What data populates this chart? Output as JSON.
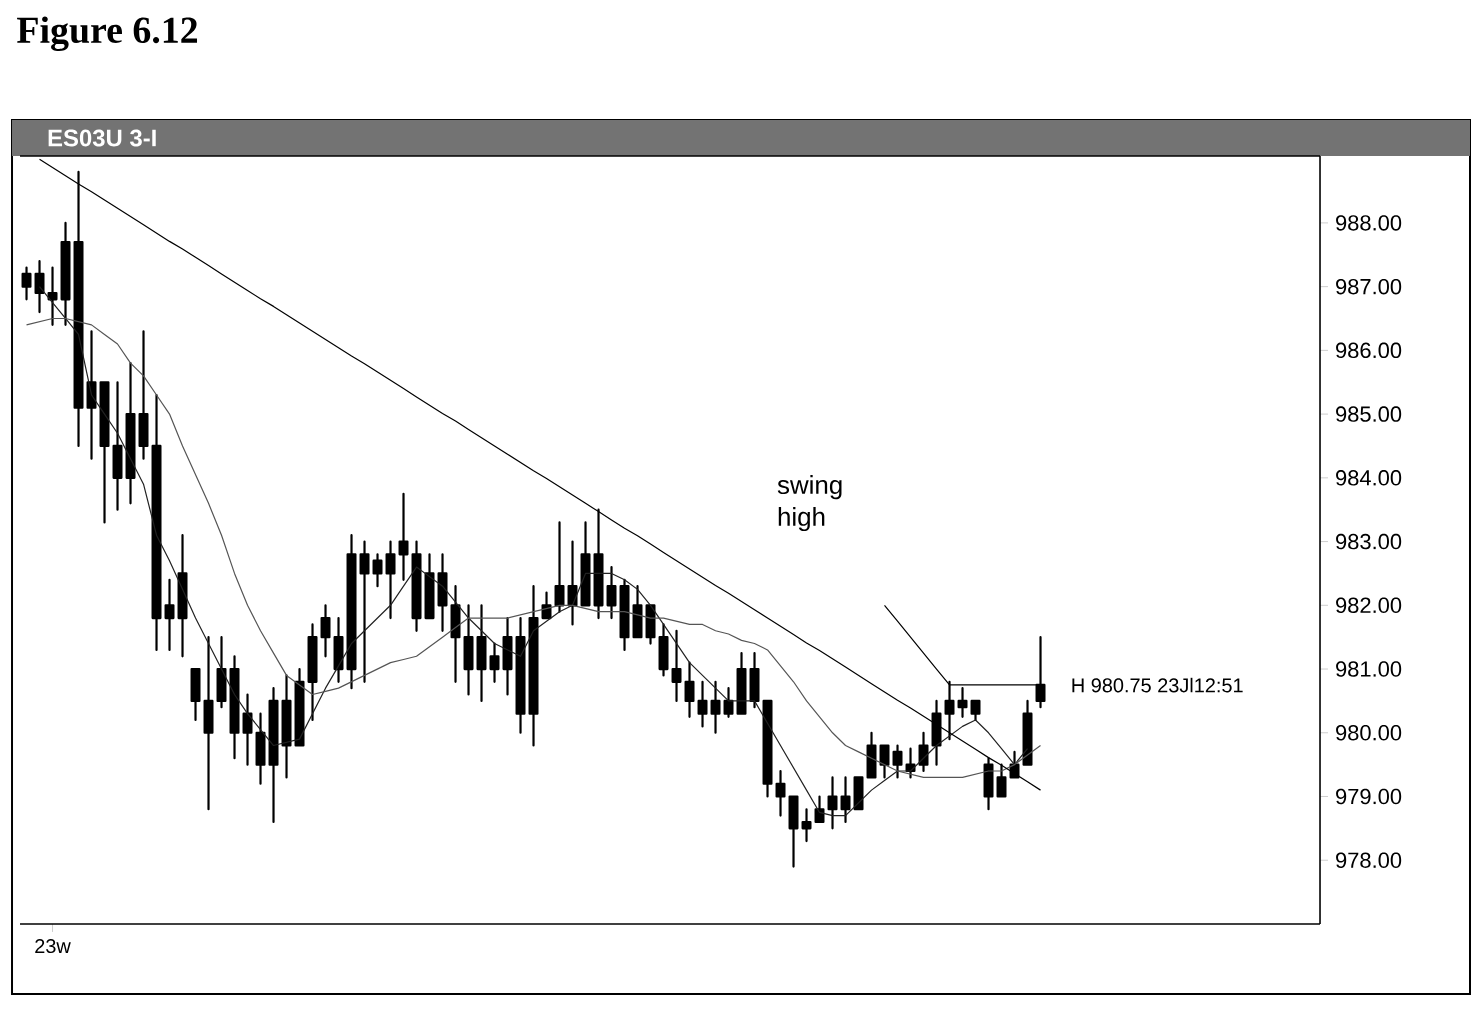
{
  "chart_data": {
    "type": "candlestick",
    "title": "Figure 6.12",
    "subtitle": "ES03U 3-I",
    "categories": [
      null,
      null,
      "23w",
      null,
      null,
      null,
      null,
      null,
      null,
      null,
      null,
      null,
      null,
      null,
      null,
      null,
      null,
      null,
      null,
      null,
      null,
      null,
      null,
      null,
      null,
      null,
      null,
      null,
      null,
      null,
      null,
      null,
      null,
      null,
      null,
      null,
      null,
      null,
      null,
      null,
      null,
      null,
      null,
      null,
      null,
      null,
      null,
      null,
      null,
      null,
      null,
      null,
      null,
      null,
      null,
      null,
      null,
      null,
      null,
      null,
      null,
      null,
      null,
      null,
      null,
      null,
      null,
      null,
      null,
      null,
      null,
      null,
      null,
      null,
      null,
      null,
      null,
      null,
      null
    ],
    "ohlc": [
      [
        987.0,
        987.3,
        986.8,
        987.2
      ],
      [
        987.2,
        987.4,
        986.6,
        986.9
      ],
      [
        986.9,
        987.3,
        986.4,
        986.8
      ],
      [
        986.8,
        988.0,
        986.4,
        987.7
      ],
      [
        987.7,
        988.8,
        984.5,
        985.1
      ],
      [
        985.1,
        986.3,
        984.3,
        985.5
      ],
      [
        985.5,
        985.5,
        983.3,
        984.5
      ],
      [
        984.5,
        985.5,
        983.5,
        984.0
      ],
      [
        984.0,
        985.8,
        983.6,
        985.0
      ],
      [
        985.0,
        986.3,
        984.3,
        984.5
      ],
      [
        984.5,
        985.3,
        981.3,
        981.8
      ],
      [
        981.8,
        982.4,
        981.3,
        982.0
      ],
      [
        981.8,
        983.1,
        981.2,
        982.5
      ],
      [
        981.0,
        981.0,
        980.2,
        980.5
      ],
      [
        980.5,
        981.5,
        978.8,
        980.0
      ],
      [
        980.5,
        981.5,
        980.4,
        981.0
      ],
      [
        981.0,
        981.2,
        979.6,
        980.0
      ],
      [
        980.0,
        980.6,
        979.5,
        980.3
      ],
      [
        980.0,
        980.3,
        979.2,
        979.5
      ],
      [
        979.5,
        980.7,
        978.6,
        980.5
      ],
      [
        980.5,
        980.9,
        979.3,
        979.8
      ],
      [
        979.8,
        981.0,
        979.8,
        980.8
      ],
      [
        980.8,
        981.7,
        980.2,
        981.5
      ],
      [
        981.5,
        982.0,
        981.2,
        981.8
      ],
      [
        981.5,
        981.8,
        980.8,
        981.0
      ],
      [
        981.0,
        983.1,
        980.7,
        982.8
      ],
      [
        982.8,
        983.0,
        980.8,
        982.5
      ],
      [
        982.5,
        982.8,
        982.3,
        982.7
      ],
      [
        982.5,
        983.0,
        981.8,
        982.8
      ],
      [
        982.8,
        983.75,
        982.4,
        983.0
      ],
      [
        982.8,
        983.0,
        981.6,
        981.8
      ],
      [
        981.8,
        982.8,
        981.8,
        982.5
      ],
      [
        982.5,
        982.8,
        981.6,
        982.0
      ],
      [
        982.0,
        982.3,
        980.8,
        981.5
      ],
      [
        981.5,
        982.0,
        980.6,
        981.0
      ],
      [
        981.0,
        982.0,
        980.5,
        981.5
      ],
      [
        981.2,
        981.4,
        980.8,
        981.0
      ],
      [
        981.0,
        981.8,
        980.6,
        981.5
      ],
      [
        981.5,
        981.8,
        980.0,
        980.3
      ],
      [
        980.3,
        982.3,
        979.8,
        981.8
      ],
      [
        981.8,
        982.2,
        981.8,
        982.0
      ],
      [
        982.0,
        983.3,
        981.9,
        982.3
      ],
      [
        982.3,
        983.0,
        981.7,
        982.0
      ],
      [
        982.0,
        983.3,
        982.0,
        982.8
      ],
      [
        982.8,
        983.5,
        981.8,
        982.0
      ],
      [
        982.0,
        982.6,
        981.8,
        982.3
      ],
      [
        982.3,
        982.4,
        981.3,
        981.5
      ],
      [
        981.5,
        982.3,
        981.5,
        982.0
      ],
      [
        982.0,
        982.0,
        981.4,
        981.5
      ],
      [
        981.5,
        981.7,
        980.9,
        981.0
      ],
      [
        981.0,
        981.6,
        980.5,
        980.8
      ],
      [
        980.8,
        981.1,
        980.25,
        980.5
      ],
      [
        980.5,
        980.8,
        980.1,
        980.3
      ],
      [
        980.3,
        980.8,
        980.0,
        980.5
      ],
      [
        980.5,
        980.7,
        980.25,
        980.3
      ],
      [
        980.3,
        981.25,
        980.3,
        981.0
      ],
      [
        981.0,
        981.25,
        980.4,
        980.5
      ],
      [
        980.5,
        980.5,
        979.0,
        979.2
      ],
      [
        979.2,
        979.4,
        978.7,
        979.0
      ],
      [
        979.0,
        979.0,
        977.9,
        978.5
      ],
      [
        978.5,
        978.8,
        978.3,
        978.6
      ],
      [
        978.6,
        979.0,
        978.6,
        978.8
      ],
      [
        978.8,
        979.3,
        978.5,
        979.0
      ],
      [
        979.0,
        979.3,
        978.6,
        978.8
      ],
      [
        978.8,
        979.3,
        978.8,
        979.3
      ],
      [
        979.3,
        980.0,
        979.3,
        979.8
      ],
      [
        979.8,
        979.8,
        979.3,
        979.5
      ],
      [
        979.5,
        979.8,
        979.3,
        979.7
      ],
      [
        979.5,
        979.75,
        979.3,
        979.4
      ],
      [
        979.5,
        980.0,
        979.4,
        979.8
      ],
      [
        979.8,
        980.5,
        979.5,
        980.3
      ],
      [
        980.3,
        980.8,
        979.9,
        980.5
      ],
      [
        980.5,
        980.7,
        980.25,
        980.4
      ],
      [
        980.5,
        980.5,
        980.2,
        980.3
      ],
      [
        979.5,
        979.6,
        978.8,
        979.0
      ],
      [
        979.0,
        979.5,
        979.0,
        979.3
      ],
      [
        979.3,
        979.7,
        979.3,
        979.5
      ],
      [
        979.5,
        980.5,
        979.5,
        980.3
      ],
      [
        980.5,
        981.5,
        980.4,
        980.75
      ]
    ],
    "series": [
      {
        "type": "line",
        "color": "#222222",
        "values": [
          null,
          987.0,
          986.75,
          986.5,
          986.25,
          985.3,
          985.0,
          984.7,
          984.3,
          983.9,
          983.1,
          982.7,
          982.25,
          981.8,
          981.4,
          981.0,
          980.6,
          980.3,
          980.05,
          979.8,
          979.85,
          979.9,
          980.3,
          980.7,
          981.05,
          981.4,
          981.6,
          981.8,
          982.0,
          982.3,
          982.6,
          982.45,
          982.3,
          982.05,
          981.8,
          981.6,
          981.4,
          981.3,
          981.2,
          981.6,
          981.75,
          981.9,
          982.0,
          982.5,
          982.5,
          982.5,
          982.4,
          982.25,
          982.0,
          981.7,
          981.4,
          981.1,
          980.9,
          980.7,
          980.5,
          980.5,
          980.5,
          980.15,
          979.8,
          979.45,
          979.1,
          978.75,
          978.7,
          978.7,
          978.9,
          979.1,
          979.25,
          979.4,
          979.4,
          979.6,
          979.8,
          979.95,
          980.1,
          980.2,
          980.0,
          979.75,
          979.5,
          979.75,
          null
        ]
      },
      {
        "type": "line",
        "color": "#555555",
        "values": [
          986.4,
          986.45,
          986.5,
          986.5,
          986.45,
          986.4,
          986.25,
          986.1,
          985.8,
          985.6,
          985.3,
          985.0,
          984.5,
          984.05,
          983.6,
          983.1,
          982.5,
          982.0,
          981.6,
          981.25,
          980.9,
          980.75,
          980.6,
          980.65,
          980.7,
          980.8,
          980.9,
          981.0,
          981.1,
          981.15,
          981.2,
          981.35,
          981.5,
          981.65,
          981.8,
          981.8,
          981.8,
          981.8,
          981.85,
          981.9,
          981.95,
          982.0,
          982.0,
          981.95,
          981.9,
          981.9,
          981.9,
          981.85,
          981.8,
          981.8,
          981.75,
          981.7,
          981.7,
          981.6,
          981.55,
          981.45,
          981.4,
          981.3,
          981.05,
          980.8,
          980.5,
          980.25,
          980.0,
          979.8,
          979.7,
          979.6,
          979.5,
          979.4,
          979.35,
          979.3,
          979.3,
          979.3,
          979.3,
          979.35,
          979.4,
          979.4,
          979.5,
          979.65,
          979.8
        ]
      },
      {
        "type": "line",
        "color": "#000000",
        "values": [
          null,
          989.0,
          988.87,
          988.74,
          988.61,
          988.49,
          988.36,
          988.23,
          988.1,
          987.97,
          987.84,
          987.71,
          987.59,
          987.46,
          987.33,
          987.2,
          987.07,
          986.94,
          986.81,
          986.69,
          986.56,
          986.43,
          986.3,
          986.17,
          986.04,
          985.91,
          985.79,
          985.66,
          985.53,
          985.4,
          985.27,
          985.14,
          985.01,
          984.89,
          984.76,
          984.63,
          984.5,
          984.37,
          984.24,
          984.11,
          983.99,
          983.86,
          983.73,
          983.6,
          983.47,
          983.34,
          983.21,
          983.09,
          982.96,
          982.83,
          982.7,
          982.57,
          982.44,
          982.31,
          982.19,
          982.06,
          981.93,
          981.8,
          981.67,
          981.54,
          981.41,
          981.29,
          981.16,
          981.03,
          980.9,
          980.77,
          980.64,
          980.51,
          980.39,
          980.26,
          980.13,
          980.0,
          979.87,
          979.74,
          979.61,
          979.49,
          979.36,
          979.23,
          979.1
        ]
      },
      {
        "type": "line",
        "color": "#000000",
        "values": [
          null,
          null,
          null,
          null,
          null,
          null,
          null,
          null,
          null,
          null,
          null,
          null,
          null,
          null,
          null,
          null,
          null,
          null,
          null,
          null,
          null,
          null,
          null,
          null,
          null,
          null,
          null,
          null,
          null,
          null,
          null,
          null,
          null,
          null,
          null,
          null,
          null,
          null,
          null,
          null,
          null,
          null,
          null,
          null,
          null,
          null,
          null,
          null,
          null,
          null,
          null,
          null,
          null,
          null,
          null,
          null,
          null,
          null,
          null,
          null,
          null,
          null,
          null,
          null,
          null,
          null,
          982.0,
          981.75,
          981.5,
          981.25,
          981.0,
          980.75,
          null,
          null,
          null,
          null,
          null,
          null,
          null
        ]
      },
      {
        "type": "line",
        "color": "#000000",
        "values": [
          null,
          null,
          null,
          null,
          null,
          null,
          null,
          null,
          null,
          null,
          null,
          null,
          null,
          null,
          null,
          null,
          null,
          null,
          null,
          null,
          null,
          null,
          null,
          null,
          null,
          null,
          null,
          null,
          null,
          null,
          null,
          null,
          null,
          null,
          null,
          null,
          null,
          null,
          null,
          null,
          null,
          null,
          null,
          null,
          null,
          null,
          null,
          null,
          null,
          null,
          null,
          null,
          null,
          null,
          null,
          null,
          null,
          null,
          null,
          null,
          null,
          null,
          null,
          null,
          null,
          null,
          null,
          null,
          null,
          null,
          null,
          980.75,
          980.75,
          980.75,
          980.75,
          980.75,
          980.75,
          980.75,
          980.75
        ]
      }
    ],
    "ylim": [
      977.0,
      989.05
    ],
    "yticks": [
      {
        "value": 978,
        "label": "978.00"
      },
      {
        "value": 979,
        "label": "979.00"
      },
      {
        "value": 980,
        "label": "980.00"
      },
      {
        "value": 981,
        "label": "981.00"
      },
      {
        "value": 982,
        "label": "982.00"
      },
      {
        "value": 983,
        "label": "983.00"
      },
      {
        "value": 984,
        "label": "984.00"
      },
      {
        "value": 985,
        "label": "985.00"
      },
      {
        "value": 986,
        "label": "986.00"
      },
      {
        "value": 987,
        "label": "987.00"
      },
      {
        "value": 988,
        "label": "988.00"
      }
    ],
    "annotations": [
      "swing high",
      "H 980.75 23Jl12:51"
    ]
  }
}
